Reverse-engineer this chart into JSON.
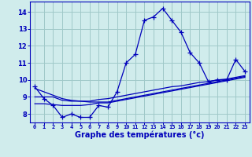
{
  "title": "Graphe des températures (°c)",
  "bg_color": "#d0ecec",
  "grid_color": "#a0c8c8",
  "line_color": "#0000bb",
  "x_hours": [
    0,
    1,
    2,
    3,
    4,
    5,
    6,
    7,
    8,
    9,
    10,
    11,
    12,
    13,
    14,
    15,
    16,
    17,
    18,
    19,
    20,
    21,
    22,
    23
  ],
  "temp_main": [
    9.6,
    8.9,
    8.5,
    7.8,
    8.0,
    7.8,
    7.8,
    8.5,
    8.4,
    9.3,
    11.0,
    11.5,
    13.5,
    13.7,
    14.2,
    13.5,
    12.8,
    11.6,
    11.0,
    9.9,
    10.0,
    10.0,
    11.2,
    10.5
  ],
  "temp_line1": [
    9.0,
    9.0,
    9.0,
    8.8,
    8.75,
    8.75,
    8.75,
    8.85,
    8.9,
    9.0,
    9.1,
    9.2,
    9.3,
    9.4,
    9.5,
    9.6,
    9.65,
    9.75,
    9.85,
    9.9,
    10.0,
    10.05,
    10.15,
    10.25
  ],
  "temp_line2": [
    8.6,
    8.6,
    8.55,
    8.5,
    8.5,
    8.5,
    8.55,
    8.65,
    8.65,
    8.75,
    8.85,
    8.95,
    9.05,
    9.15,
    9.25,
    9.35,
    9.45,
    9.55,
    9.65,
    9.75,
    9.85,
    9.95,
    10.05,
    10.15
  ],
  "temp_line3": [
    9.5,
    9.3,
    9.1,
    8.9,
    8.8,
    8.75,
    8.7,
    8.7,
    8.7,
    8.8,
    8.9,
    9.0,
    9.1,
    9.2,
    9.3,
    9.4,
    9.5,
    9.6,
    9.7,
    9.8,
    9.9,
    10.0,
    10.1,
    10.2
  ],
  "ylim": [
    7.5,
    14.6
  ],
  "yticks": [
    8,
    9,
    10,
    11,
    12,
    13,
    14
  ],
  "xlim": [
    -0.5,
    23.5
  ]
}
